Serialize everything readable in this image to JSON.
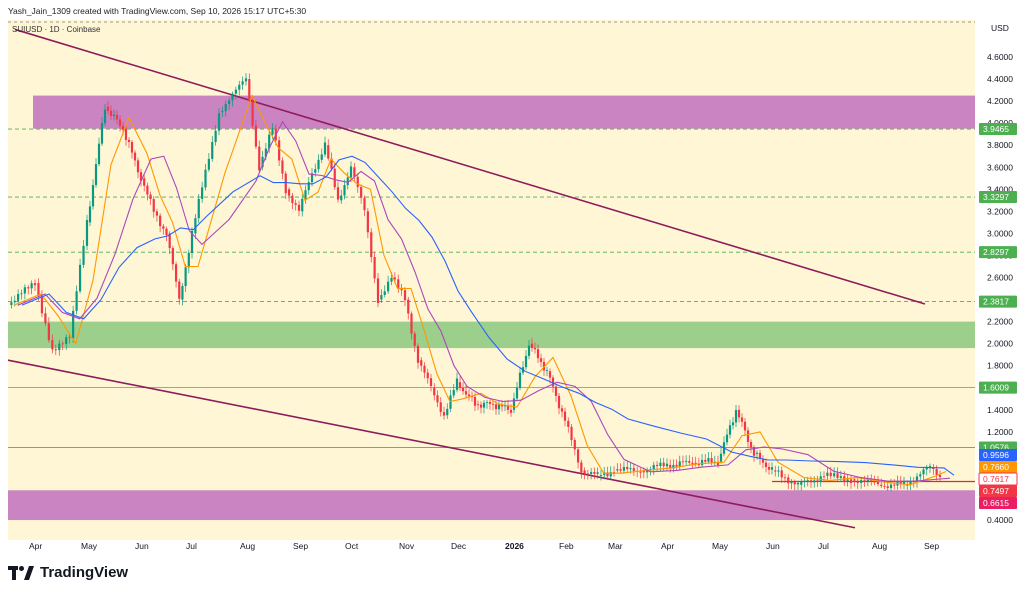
{
  "header": {
    "attribution": "Yash_Jain_1309 created with TradingView.com, Sep 10, 2026 15:17 UTC+5:30",
    "symbol": "SUIUSD · 1D · Coinbase",
    "currency": "USD"
  },
  "brand": {
    "name": "TradingView"
  },
  "chart_data": {
    "type": "candlestick",
    "symbol": "SUIUSD",
    "interval": "1D",
    "exchange": "Coinbase",
    "price_axis": {
      "ticks": [
        "4.6000",
        "4.4000",
        "4.2000",
        "4.0000",
        "3.8000",
        "3.6000",
        "3.4000",
        "3.2000",
        "3.0000",
        "2.8000",
        "2.6000",
        "2.4000",
        "2.2000",
        "2.0000",
        "1.8000",
        "1.6000",
        "1.4000",
        "1.2000",
        "1.0000",
        "0.8000",
        "0.6000",
        "0.4000"
      ],
      "range": [
        0.35,
        4.95
      ]
    },
    "time_axis": {
      "labels": [
        "Apr",
        "May",
        "Jun",
        "Jul",
        "Aug",
        "Sep",
        "Oct",
        "Nov",
        "Dec",
        "2026",
        "Feb",
        "Mar",
        "Apr",
        "May",
        "Jun",
        "Jul",
        "Aug",
        "Sep"
      ]
    },
    "horizontal_levels": [
      {
        "label": "3.9465",
        "value": 3.9465,
        "color": "#4caf50",
        "style": "dashed"
      },
      {
        "label": "3.3297",
        "value": 3.3297,
        "color": "#4caf50",
        "style": "dashed"
      },
      {
        "label": "2.8297",
        "value": 2.8297,
        "color": "#4caf50",
        "style": "dashed"
      },
      {
        "label": "2.3817",
        "value": 2.3817,
        "color": "#4caf50",
        "style": "dashed"
      },
      {
        "label": "1.6009",
        "value": 1.6009,
        "color": "#4caf50",
        "style": "solid"
      },
      {
        "label": "1.0576",
        "value": 1.0576,
        "color": "#4caf50",
        "style": "solid"
      }
    ],
    "price_labels": [
      {
        "label": "0.9596",
        "value": 0.9596,
        "color": "#2962ff"
      },
      {
        "label": "0.7660",
        "value": 0.766,
        "color": "#ff9800"
      },
      {
        "label": "0.7617",
        "value": 0.7617,
        "color": "#ffffff",
        "text_color": "#f23645",
        "border": "#f23645"
      },
      {
        "label": "0.7497",
        "value": 0.7497,
        "color": "#f23645"
      },
      {
        "label": "0.6615",
        "value": 0.6615,
        "color": "#e91e63"
      }
    ],
    "zones": [
      {
        "name": "resistance-zone",
        "from": 3.95,
        "to": 4.25,
        "color": "#9c27b0"
      },
      {
        "name": "support-zone",
        "from": 1.96,
        "to": 2.2,
        "color": "#4caf50"
      },
      {
        "name": "demand-zone",
        "from": 0.4,
        "to": 0.67,
        "color": "#9c27b0"
      }
    ],
    "trendlines": [
      {
        "name": "upper-channel",
        "from": [
          "Mar",
          4.85
        ],
        "to": [
          "Sep",
          2.36
        ]
      },
      {
        "name": "lower-channel",
        "from": [
          "Mar",
          1.85
        ],
        "to": [
          "Sep",
          0.33
        ]
      },
      {
        "name": "base-support",
        "from": [
          "Jun",
          0.75
        ],
        "to": [
          "Sep",
          0.75
        ]
      }
    ],
    "close_path": [
      [
        "Mar",
        2.35
      ],
      [
        "Apr",
        2.55
      ],
      [
        "Apr",
        1.95
      ],
      [
        "Apr",
        2.05
      ],
      [
        "May",
        3.1
      ],
      [
        "May",
        4.15
      ],
      [
        "May",
        3.95
      ],
      [
        "Jun",
        3.5
      ],
      [
        "Jun",
        3.2
      ],
      [
        "Jun",
        3.0
      ],
      [
        "Jun",
        2.4
      ],
      [
        "Jul",
        3.0
      ],
      [
        "Jul",
        4.1
      ],
      [
        "Aug",
        4.4
      ],
      [
        "Aug",
        3.6
      ],
      [
        "Aug",
        3.95
      ],
      [
        "Aug",
        3.4
      ],
      [
        "Sep",
        3.2
      ],
      [
        "Sep",
        3.55
      ],
      [
        "Sep",
        3.8
      ],
      [
        "Sep",
        3.3
      ],
      [
        "Oct",
        3.6
      ],
      [
        "Oct",
        3.2
      ],
      [
        "Oct",
        2.4
      ],
      [
        "Oct",
        2.6
      ],
      [
        "Nov",
        2.4
      ],
      [
        "Nov",
        1.85
      ],
      [
        "Nov",
        1.6
      ],
      [
        "Nov",
        1.35
      ],
      [
        "Dec",
        1.65
      ],
      [
        "Dec",
        1.45
      ],
      [
        "Dec",
        1.45
      ],
      [
        "2026",
        1.4
      ],
      [
        "2026",
        2.0
      ],
      [
        "2026",
        1.75
      ],
      [
        "Feb",
        1.3
      ],
      [
        "Feb",
        0.85
      ],
      [
        "Feb",
        0.8
      ],
      [
        "Mar",
        0.85
      ],
      [
        "Mar",
        0.85
      ],
      [
        "Apr",
        0.9
      ],
      [
        "Apr",
        0.92
      ],
      [
        "May",
        0.93
      ],
      [
        "May",
        1.4
      ],
      [
        "May",
        1.0
      ],
      [
        "Jun",
        0.85
      ],
      [
        "Jun",
        0.72
      ],
      [
        "Jul",
        0.8
      ],
      [
        "Jul",
        0.77
      ],
      [
        "Aug",
        0.72
      ],
      [
        "Aug",
        0.72
      ],
      [
        "Sep",
        0.88
      ],
      [
        "Sep",
        0.8
      ]
    ],
    "moving_averages": [
      {
        "name": "MA-short",
        "color": "#ff9800"
      },
      {
        "name": "MA-mid",
        "color": "#ab47bc"
      },
      {
        "name": "MA-long",
        "color": "#2962ff"
      }
    ],
    "colors": {
      "plot_background": "#fff6d5",
      "up": "#089981",
      "down": "#f23645",
      "grid_dash": "#999999"
    }
  }
}
